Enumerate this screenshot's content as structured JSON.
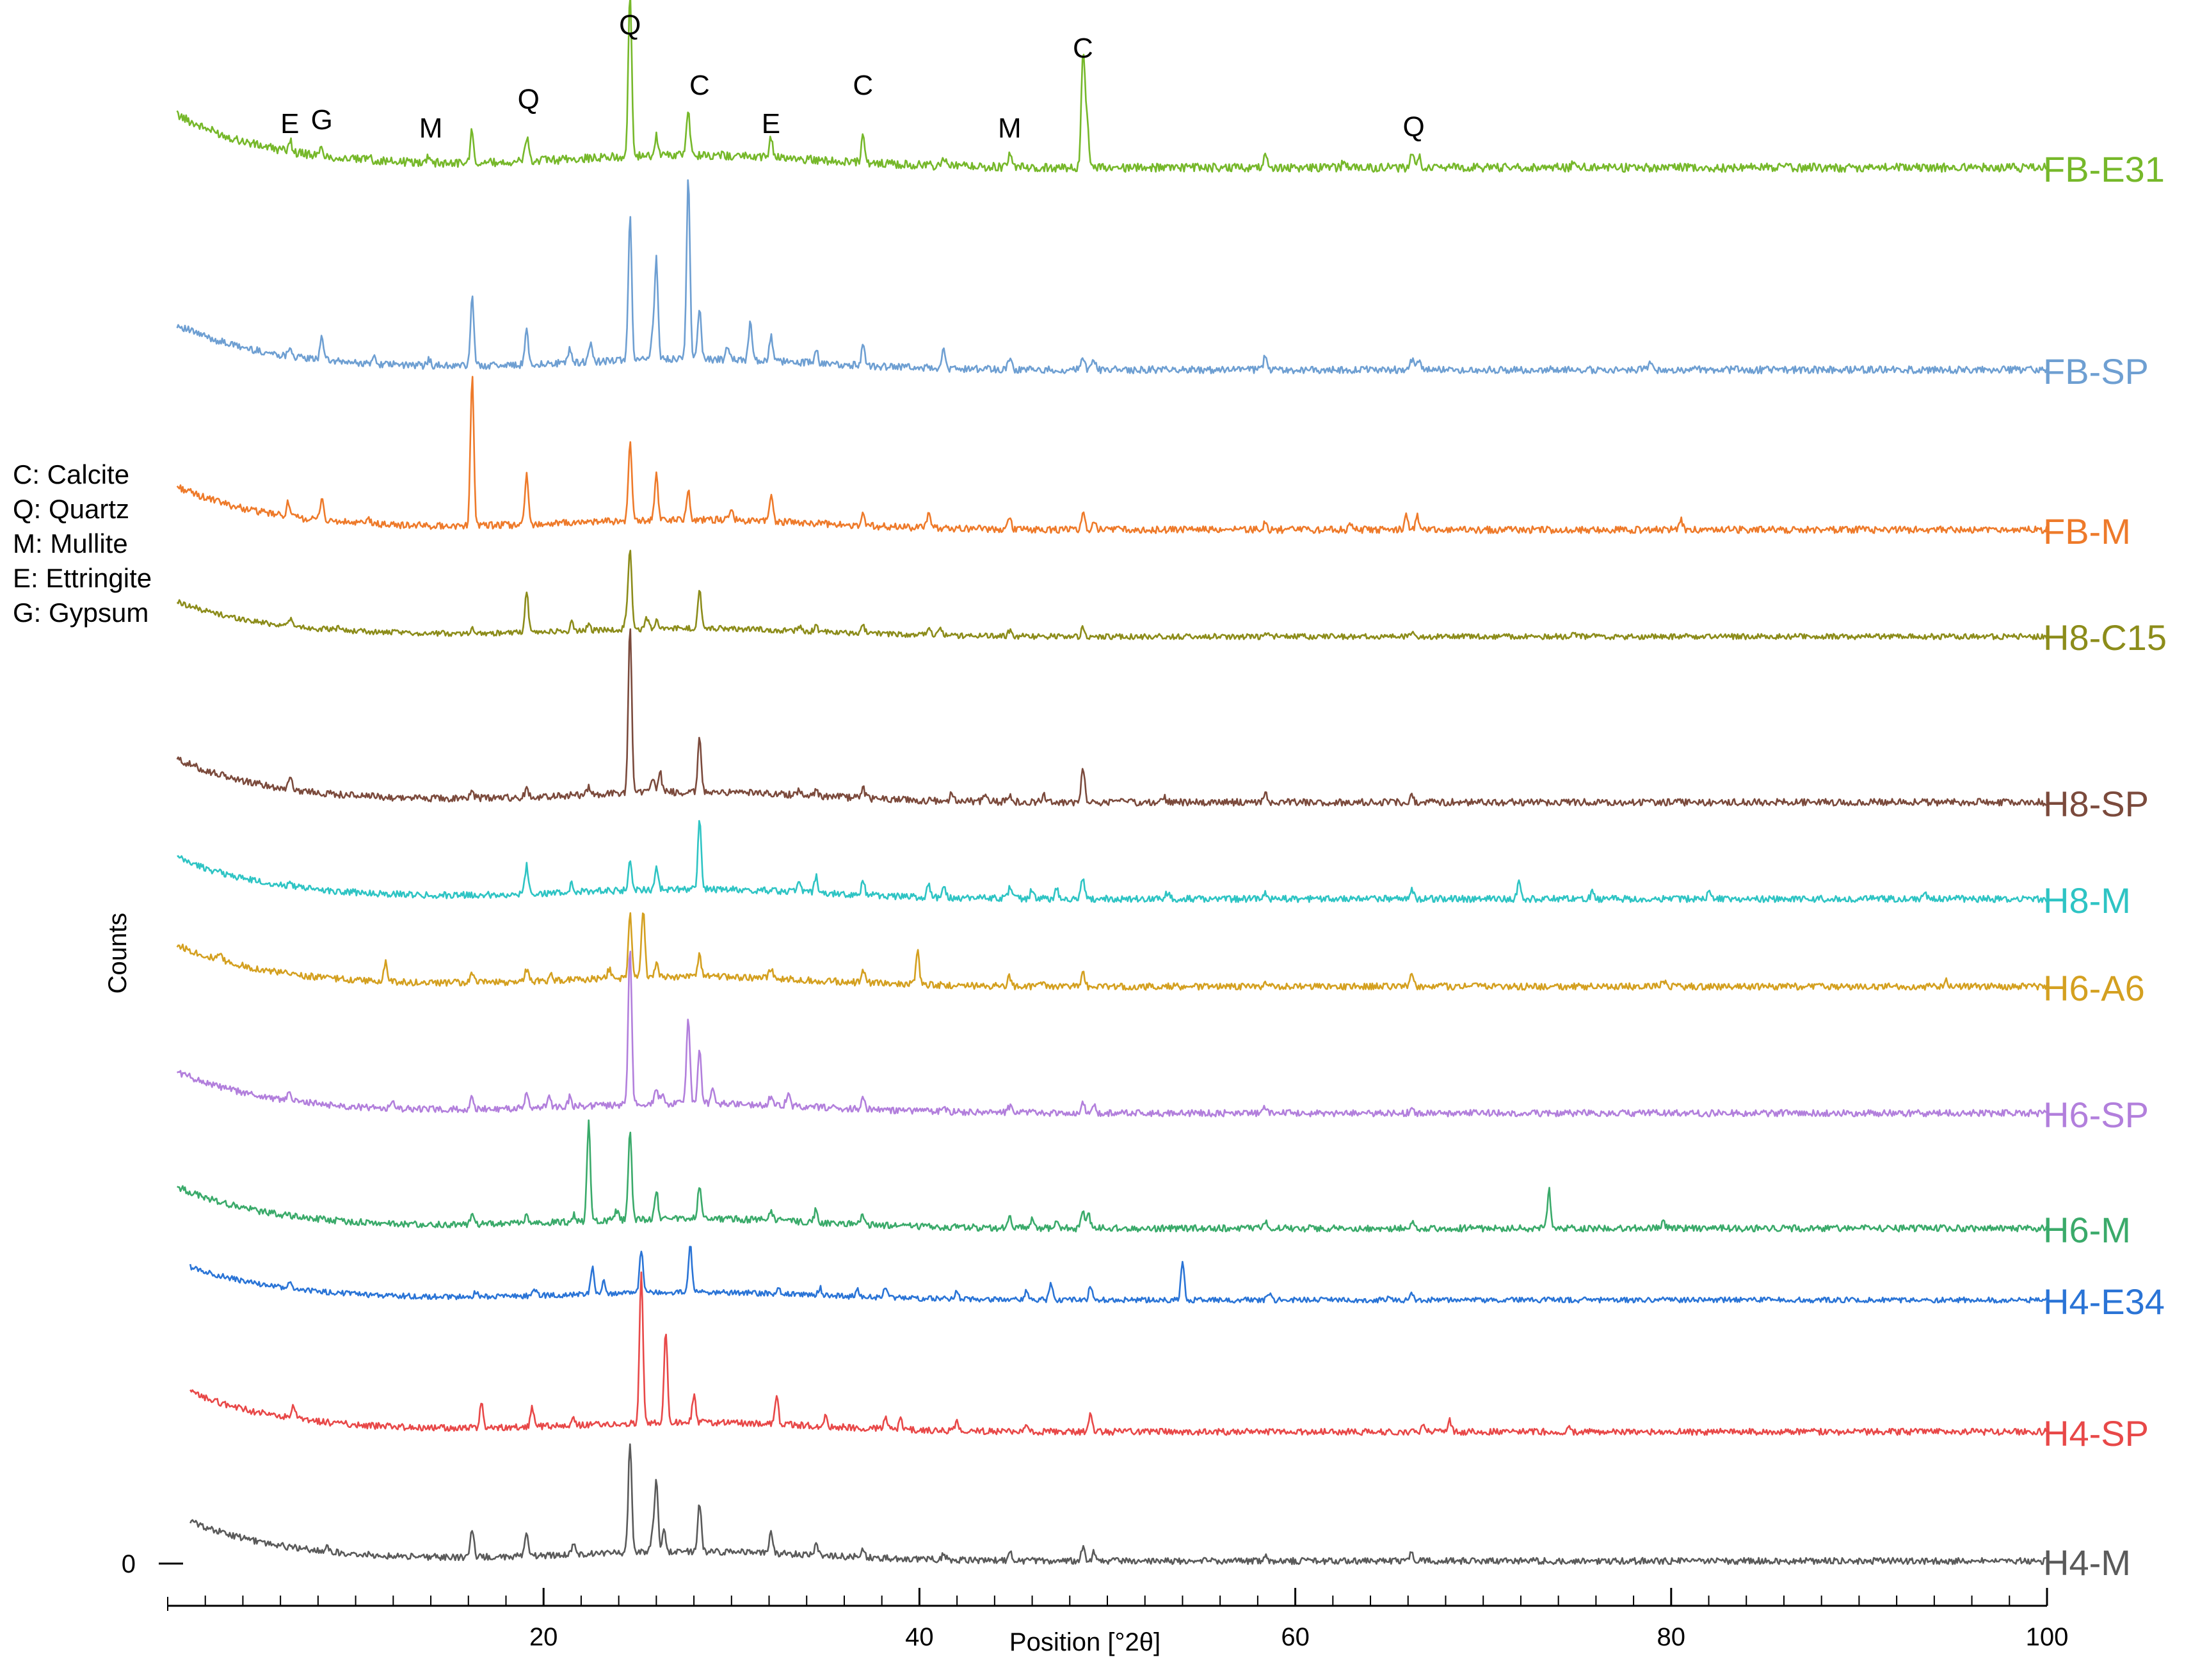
{
  "chart_data": {
    "type": "line",
    "title": "",
    "xlabel": "Position  [°2θ]",
    "ylabel": "Counts",
    "xlim": [
      0,
      100
    ],
    "x_ticks": [
      20,
      40,
      60,
      80,
      100
    ],
    "y_tick_label": "0",
    "grid": false,
    "legend_key": [
      "C: Calcite",
      "Q: Quartz",
      "M: Mullite",
      "E: Ettringite",
      "G: Gypsum"
    ],
    "peak_markers": [
      {
        "label": "E",
        "x": 6.5,
        "above": "FB-E31"
      },
      {
        "label": "G",
        "x": 8.2,
        "above": "FB-E31"
      },
      {
        "label": "M",
        "x": 14.0,
        "above": "FB-E31"
      },
      {
        "label": "Q",
        "x": 19.2,
        "above": "FB-E31"
      },
      {
        "label": "Q",
        "x": 24.6,
        "above": "FB-E31"
      },
      {
        "label": "C",
        "x": 28.3,
        "above": "FB-E31"
      },
      {
        "label": "E",
        "x": 32.1,
        "above": "FB-E31"
      },
      {
        "label": "C",
        "x": 37.0,
        "above": "FB-E31"
      },
      {
        "label": "M",
        "x": 44.8,
        "above": "FB-E31"
      },
      {
        "label": "C",
        "x": 48.7,
        "above": "FB-E31"
      },
      {
        "label": "Q",
        "x": 66.3,
        "above": "FB-E31"
      }
    ],
    "series": [
      {
        "name": "FB-E31",
        "color": "#76b82a",
        "baseline": 92,
        "start": 0.5,
        "peaks": [
          [
            6.5,
            6
          ],
          [
            8.2,
            4
          ],
          [
            10.7,
            3
          ],
          [
            13.9,
            4
          ],
          [
            16.2,
            16
          ],
          [
            19.1,
            12
          ],
          [
            24.6,
            80
          ],
          [
            26.0,
            10
          ],
          [
            27.7,
            22
          ],
          [
            32.1,
            10
          ],
          [
            37.0,
            14
          ],
          [
            41.3,
            4
          ],
          [
            44.8,
            6
          ],
          [
            48.7,
            55
          ],
          [
            48.9,
            25
          ],
          [
            58.4,
            6
          ],
          [
            62.6,
            4
          ],
          [
            66.2,
            8
          ],
          [
            66.6,
            6
          ],
          [
            74.8,
            3
          ]
        ]
      },
      {
        "name": "FB-SP",
        "color": "#6e9fd2",
        "baseline": 84,
        "start": 0.5,
        "peaks": [
          [
            6.5,
            6
          ],
          [
            8.2,
            15
          ],
          [
            11.0,
            4
          ],
          [
            13.9,
            4
          ],
          [
            16.2,
            40
          ],
          [
            19.1,
            20
          ],
          [
            21.4,
            8
          ],
          [
            22.5,
            10
          ],
          [
            24.6,
            84
          ],
          [
            25.8,
            12
          ],
          [
            26.0,
            58
          ],
          [
            27.7,
            105
          ],
          [
            28.3,
            30
          ],
          [
            29.8,
            8
          ],
          [
            31.0,
            22
          ],
          [
            32.1,
            14
          ],
          [
            34.5,
            8
          ],
          [
            37.0,
            12
          ],
          [
            41.3,
            12
          ],
          [
            44.8,
            6
          ],
          [
            48.7,
            8
          ],
          [
            49.3,
            6
          ],
          [
            58.4,
            8
          ],
          [
            66.2,
            6
          ],
          [
            66.6,
            6
          ],
          [
            78.9,
            4
          ]
        ]
      },
      {
        "name": "FB-M",
        "color": "#ee7a2a",
        "baseline": 76,
        "start": 0.5,
        "peaks": [
          [
            6.4,
            8
          ],
          [
            8.2,
            14
          ],
          [
            10.7,
            3
          ],
          [
            16.2,
            90
          ],
          [
            19.1,
            30
          ],
          [
            24.6,
            48
          ],
          [
            26.0,
            28
          ],
          [
            27.7,
            18
          ],
          [
            30.0,
            6
          ],
          [
            32.1,
            16
          ],
          [
            37.0,
            8
          ],
          [
            40.5,
            10
          ],
          [
            44.8,
            8
          ],
          [
            48.7,
            10
          ],
          [
            49.3,
            6
          ],
          [
            58.4,
            4
          ],
          [
            63.0,
            4
          ],
          [
            65.9,
            10
          ],
          [
            66.5,
            8
          ],
          [
            80.5,
            6
          ]
        ]
      },
      {
        "name": "H8-C15",
        "color": "#8c8c1a",
        "baseline": 70,
        "start": 0.5,
        "peaks": [
          [
            6.5,
            6
          ],
          [
            9.1,
            3
          ],
          [
            16.2,
            4
          ],
          [
            19.1,
            30
          ],
          [
            21.5,
            6
          ],
          [
            22.4,
            4
          ],
          [
            24.4,
            10
          ],
          [
            24.6,
            58
          ],
          [
            25.5,
            8
          ],
          [
            26.0,
            6
          ],
          [
            28.3,
            28
          ],
          [
            33.6,
            4
          ],
          [
            34.5,
            4
          ],
          [
            37.0,
            6
          ],
          [
            40.5,
            6
          ],
          [
            41.1,
            6
          ],
          [
            44.8,
            4
          ],
          [
            48.7,
            6
          ],
          [
            58.4,
            4
          ],
          [
            66.2,
            4
          ],
          [
            74.8,
            4
          ]
        ]
      },
      {
        "name": "H8-SP",
        "color": "#7b4a3c",
        "baseline": 60,
        "start": 0.5,
        "peaks": [
          [
            6.5,
            8
          ],
          [
            16.2,
            4
          ],
          [
            19.1,
            5
          ],
          [
            22.4,
            5
          ],
          [
            24.6,
            100
          ],
          [
            25.8,
            10
          ],
          [
            26.2,
            12
          ],
          [
            28.3,
            32
          ],
          [
            33.6,
            4
          ],
          [
            34.5,
            4
          ],
          [
            37.0,
            6
          ],
          [
            41.7,
            4
          ],
          [
            43.5,
            4
          ],
          [
            44.8,
            4
          ],
          [
            46.6,
            4
          ],
          [
            48.7,
            22
          ],
          [
            53.0,
            4
          ],
          [
            58.4,
            6
          ],
          [
            66.2,
            4
          ]
        ]
      },
      {
        "name": "H8-M",
        "color": "#2ec4c4",
        "baseline": 53,
        "start": 0.5,
        "peaks": [
          [
            6.5,
            4
          ],
          [
            19.1,
            18
          ],
          [
            21.5,
            6
          ],
          [
            24.6,
            20
          ],
          [
            26.0,
            14
          ],
          [
            28.3,
            44
          ],
          [
            33.6,
            6
          ],
          [
            34.5,
            10
          ],
          [
            37.0,
            8
          ],
          [
            40.5,
            8
          ],
          [
            41.3,
            8
          ],
          [
            44.8,
            6
          ],
          [
            46.0,
            6
          ],
          [
            47.3,
            6
          ],
          [
            48.7,
            14
          ],
          [
            53.2,
            4
          ],
          [
            58.4,
            4
          ],
          [
            66.2,
            6
          ],
          [
            71.9,
            10
          ],
          [
            75.8,
            4
          ],
          [
            82.0,
            4
          ],
          [
            93.5,
            4
          ]
        ]
      },
      {
        "name": "H6-A6",
        "color": "#d4a020",
        "baseline": 48,
        "start": 0.5,
        "peaks": [
          [
            2.8,
            4
          ],
          [
            11.6,
            12
          ],
          [
            16.2,
            6
          ],
          [
            19.1,
            8
          ],
          [
            20.4,
            4
          ],
          [
            23.5,
            6
          ],
          [
            24.6,
            40
          ],
          [
            25.3,
            42
          ],
          [
            26.0,
            8
          ],
          [
            28.3,
            14
          ],
          [
            32.1,
            6
          ],
          [
            37.0,
            8
          ],
          [
            39.9,
            22
          ],
          [
            44.8,
            6
          ],
          [
            46.6,
            4
          ],
          [
            48.7,
            8
          ],
          [
            58.4,
            4
          ],
          [
            66.2,
            10
          ],
          [
            79.6,
            4
          ],
          [
            94.6,
            4
          ]
        ]
      },
      {
        "name": "H6-SP",
        "color": "#b27fdc",
        "baseline": 39,
        "start": 0.5,
        "peaks": [
          [
            6.5,
            6
          ],
          [
            12.0,
            4
          ],
          [
            16.2,
            8
          ],
          [
            19.1,
            10
          ],
          [
            20.3,
            8
          ],
          [
            21.4,
            6
          ],
          [
            24.6,
            100
          ],
          [
            26.0,
            8
          ],
          [
            26.3,
            6
          ],
          [
            27.7,
            55
          ],
          [
            28.3,
            35
          ],
          [
            29.0,
            10
          ],
          [
            32.1,
            6
          ],
          [
            33.0,
            8
          ],
          [
            37.0,
            6
          ],
          [
            41.3,
            4
          ],
          [
            44.8,
            4
          ],
          [
            48.7,
            6
          ],
          [
            49.3,
            4
          ],
          [
            58.4,
            4
          ],
          [
            66.2,
            4
          ]
        ]
      },
      {
        "name": "H6-M",
        "color": "#3aaa6a",
        "baseline": 31,
        "start": 0.5,
        "peaks": [
          [
            16.2,
            8
          ],
          [
            19.1,
            6
          ],
          [
            21.6,
            4
          ],
          [
            22.4,
            62
          ],
          [
            23.9,
            6
          ],
          [
            24.6,
            56
          ],
          [
            26.0,
            18
          ],
          [
            28.3,
            20
          ],
          [
            32.1,
            6
          ],
          [
            34.5,
            8
          ],
          [
            37.0,
            6
          ],
          [
            44.8,
            6
          ],
          [
            46.0,
            6
          ],
          [
            47.3,
            6
          ],
          [
            48.7,
            12
          ],
          [
            49.0,
            8
          ],
          [
            58.4,
            4
          ],
          [
            66.2,
            4
          ],
          [
            73.5,
            24
          ],
          [
            79.6,
            4
          ]
        ]
      },
      {
        "name": "H4-E34",
        "color": "#2a74d6",
        "baseline": 25,
        "start": 1.2,
        "peaks": [
          [
            6.5,
            4
          ],
          [
            16.4,
            4
          ],
          [
            19.5,
            6
          ],
          [
            22.6,
            22
          ],
          [
            23.2,
            10
          ],
          [
            25.2,
            34
          ],
          [
            27.8,
            38
          ],
          [
            32.5,
            6
          ],
          [
            34.7,
            6
          ],
          [
            36.7,
            6
          ],
          [
            38.2,
            8
          ],
          [
            42.0,
            6
          ],
          [
            45.7,
            8
          ],
          [
            47.0,
            12
          ],
          [
            49.1,
            10
          ],
          [
            54.0,
            30
          ],
          [
            58.6,
            6
          ],
          [
            65.0,
            4
          ],
          [
            66.2,
            4
          ]
        ]
      },
      {
        "name": "H4-SP",
        "color": "#e84848",
        "baseline": 17,
        "start": 1.2,
        "peaks": [
          [
            6.7,
            8
          ],
          [
            16.7,
            16
          ],
          [
            19.4,
            12
          ],
          [
            21.6,
            4
          ],
          [
            25.2,
            100
          ],
          [
            26.5,
            60
          ],
          [
            28.0,
            18
          ],
          [
            32.4,
            18
          ],
          [
            35.0,
            6
          ],
          [
            38.2,
            8
          ],
          [
            39.0,
            6
          ],
          [
            42.0,
            6
          ],
          [
            45.7,
            4
          ],
          [
            49.1,
            12
          ],
          [
            66.8,
            6
          ],
          [
            68.2,
            8
          ],
          [
            74.5,
            3
          ]
        ]
      },
      {
        "name": "H4-M",
        "color": "#5a5a5a",
        "baseline": 5,
        "start": 1.2,
        "peaks": [
          [
            8.5,
            4
          ],
          [
            16.2,
            18
          ],
          [
            19.1,
            14
          ],
          [
            21.6,
            6
          ],
          [
            24.6,
            72
          ],
          [
            25.8,
            12
          ],
          [
            26.0,
            46
          ],
          [
            26.4,
            14
          ],
          [
            28.3,
            32
          ],
          [
            32.1,
            14
          ],
          [
            34.5,
            6
          ],
          [
            37.0,
            6
          ],
          [
            41.3,
            4
          ],
          [
            44.8,
            6
          ],
          [
            48.7,
            8
          ],
          [
            49.3,
            6
          ],
          [
            58.4,
            4
          ],
          [
            66.2,
            6
          ]
        ]
      }
    ]
  }
}
